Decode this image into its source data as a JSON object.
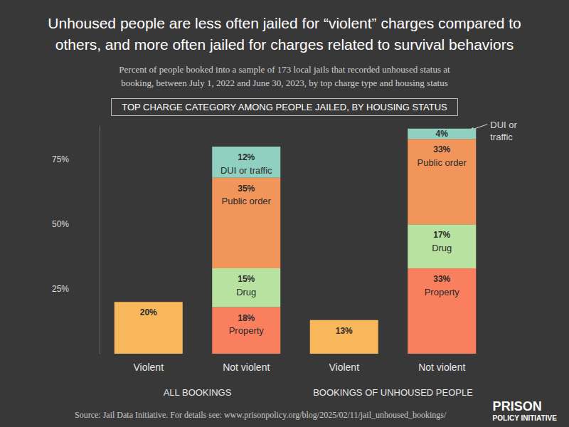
{
  "chart_data": {
    "type": "bar",
    "title": "Unhoused people are less often jailed for “violent” charges compared to\nothers, and more often jailed for charges related to survival behaviors",
    "subtitle": "Percent of people booked into a sample of 173 local jails that recorded unhoused status at\nbooking, between July 1, 2022 and June 30, 2023, by top charge type and housing status",
    "panel_title": "TOP CHARGE CATEGORY AMONG PEOPLE JAILED, BY HOUSING STATUS",
    "categories": [
      "Violent",
      "Not violent",
      "Violent",
      "Not violent"
    ],
    "groups": [
      "ALL BOOKINGS",
      "BOOKINGS OF UNHOUSED PEOPLE"
    ],
    "series": [
      {
        "name": "Violent",
        "color": "#f8b75a",
        "values": [
          20,
          null,
          13,
          null
        ],
        "value_labels": [
          "20%",
          null,
          "13%",
          null
        ]
      },
      {
        "name": "Property",
        "color": "#fa7f5e",
        "values": [
          null,
          18,
          null,
          33
        ],
        "value_labels": [
          null,
          "18%",
          null,
          "33%"
        ]
      },
      {
        "name": "Drug",
        "color": "#b8e2a0",
        "values": [
          null,
          15,
          null,
          17
        ],
        "value_labels": [
          null,
          "15%",
          null,
          "17%"
        ]
      },
      {
        "name": "Public order",
        "color": "#f1955b",
        "values": [
          null,
          35,
          null,
          33
        ],
        "value_labels": [
          null,
          "35%",
          null,
          "33%"
        ]
      },
      {
        "name": "DUI or traffic",
        "color": "#8fd0c1",
        "values": [
          null,
          12,
          null,
          4
        ],
        "value_labels": [
          null,
          "12%",
          null,
          "4%"
        ]
      }
    ],
    "ylim": [
      0,
      88
    ],
    "yticks": [
      {
        "value": 25,
        "label": "25%"
      },
      {
        "value": 50,
        "label": "50%"
      },
      {
        "value": 75,
        "label": "75%"
      }
    ],
    "grid": false,
    "stacked": true,
    "data_labels": true,
    "source": "Source: Jail Data Initiative. For details see: www.prisonpolicy.org/blog/2025/02/11/jail_unhoused_bookings/",
    "credit": [
      "PRISON",
      "POLICY INITIATIVE"
    ]
  }
}
